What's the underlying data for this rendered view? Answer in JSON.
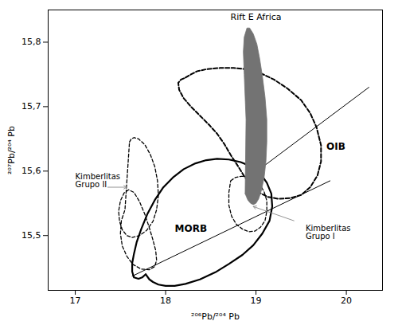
{
  "chart_data": {
    "type": "line",
    "xlabel": "²⁰⁶Pb/²⁰⁴ Pb",
    "ylabel": "²⁰⁷Pb/²⁰⁴ Pb",
    "xlim": [
      16.7,
      20.4
    ],
    "ylim": [
      15.415,
      15.85
    ],
    "xticks": [
      17,
      18,
      19,
      20
    ],
    "yticks": [
      {
        "value": 15.5,
        "label": "15,5"
      },
      {
        "value": 15.6,
        "label": "15,6"
      },
      {
        "value": 15.7,
        "label": "15,7"
      },
      {
        "value": 15.8,
        "label": "15,8"
      }
    ],
    "series": [
      {
        "type": "line",
        "line_style": "solid",
        "x": [
          17.63,
          19.82
        ],
        "values": [
          15.437,
          15.585
        ]
      },
      {
        "type": "line",
        "line_style": "solid",
        "x": [
          19.06,
          20.25
        ],
        "values": [
          15.605,
          15.73
        ]
      },
      {
        "type": "line",
        "line_style": "solid",
        "x": [
          17.78,
          17.82,
          17.86,
          17.92,
          18.0,
          18.1,
          18.22,
          18.38,
          18.55,
          18.7,
          18.85,
          18.97,
          19.07,
          19.15,
          19.18,
          19.17,
          19.12,
          19.05,
          18.95,
          18.83,
          18.7,
          18.57,
          18.45,
          18.33,
          18.2,
          18.08,
          17.97,
          17.88,
          17.8,
          17.73,
          17.68,
          17.65,
          17.63,
          17.63,
          17.65,
          17.7,
          17.74,
          17.78
        ],
        "values": [
          15.44,
          15.432,
          15.428,
          15.424,
          15.422,
          15.422,
          15.425,
          15.432,
          15.443,
          15.456,
          15.47,
          15.485,
          15.503,
          15.523,
          15.545,
          15.565,
          15.582,
          15.596,
          15.607,
          15.614,
          15.618,
          15.619,
          15.617,
          15.612,
          15.603,
          15.59,
          15.574,
          15.555,
          15.534,
          15.51,
          15.49,
          15.472,
          15.457,
          15.444,
          15.435,
          15.433,
          15.435,
          15.44
        ]
      },
      {
        "type": "line",
        "line_style": "dashed",
        "x": [
          18.22,
          18.28,
          18.35,
          18.45,
          18.6,
          18.75,
          18.9,
          19.05,
          19.2,
          19.35,
          19.5,
          19.6,
          19.67,
          19.72,
          19.72,
          19.68,
          19.6,
          19.5,
          19.38,
          19.25,
          19.13,
          19.03,
          18.95,
          18.87,
          18.8,
          18.72,
          18.65,
          18.57,
          18.48,
          18.38,
          18.28,
          18.2,
          18.15,
          18.14,
          18.17,
          18.22
        ],
        "values": [
          15.745,
          15.75,
          15.755,
          15.758,
          15.76,
          15.76,
          15.758,
          15.752,
          15.742,
          15.728,
          15.71,
          15.69,
          15.668,
          15.64,
          15.615,
          15.593,
          15.575,
          15.563,
          15.558,
          15.557,
          15.56,
          15.567,
          15.578,
          15.592,
          15.608,
          15.625,
          15.642,
          15.658,
          15.672,
          15.686,
          15.7,
          15.713,
          15.726,
          15.737,
          15.742,
          15.745
        ]
      },
      {
        "type": "line",
        "line_style": "dashed",
        "x": [
          17.6,
          17.62,
          17.65,
          17.7,
          17.77,
          17.83,
          17.88,
          17.91,
          17.92,
          17.9,
          17.86,
          17.79,
          17.71,
          17.63,
          17.57,
          17.52,
          17.49,
          17.48,
          17.5,
          17.54,
          17.59,
          17.65,
          17.71,
          17.77,
          17.82,
          17.86,
          17.89,
          17.9,
          17.88,
          17.82,
          17.73,
          17.64,
          17.57,
          17.52,
          17.5,
          17.51,
          17.55,
          17.6
        ],
        "values": [
          15.645,
          15.65,
          15.652,
          15.65,
          15.641,
          15.626,
          15.607,
          15.585,
          15.562,
          15.54,
          15.522,
          15.508,
          15.5,
          15.497,
          15.5,
          15.509,
          15.522,
          15.538,
          15.554,
          15.566,
          15.571,
          15.567,
          15.553,
          15.533,
          15.512,
          15.493,
          15.477,
          15.462,
          15.452,
          15.447,
          15.448,
          15.455,
          15.468,
          15.484,
          15.503,
          15.523,
          15.54,
          15.645
        ]
      },
      {
        "type": "line",
        "line_style": "dashed",
        "x": [
          18.72,
          18.77,
          18.84,
          18.91,
          18.98,
          19.04,
          19.09,
          19.12,
          19.12,
          19.1,
          19.05,
          18.99,
          18.92,
          18.85,
          18.78,
          18.73,
          18.7,
          18.7,
          18.72
        ],
        "values": [
          15.585,
          15.59,
          15.592,
          15.591,
          15.587,
          15.58,
          15.568,
          15.554,
          15.538,
          15.523,
          15.513,
          15.507,
          15.506,
          15.51,
          15.518,
          15.53,
          15.547,
          15.567,
          15.585
        ]
      },
      {
        "type": "area",
        "line_style": "solid",
        "color": "#737373",
        "x": [
          18.88,
          18.91,
          18.94,
          18.97,
          19.0,
          19.03,
          19.06,
          19.09,
          19.11,
          19.12,
          19.12,
          19.1,
          19.07,
          19.04,
          19.01,
          18.97,
          18.93,
          18.9,
          18.87,
          18.86,
          18.87,
          18.89,
          18.88
        ],
        "values": [
          15.565,
          15.555,
          15.55,
          15.548,
          15.55,
          15.557,
          15.57,
          15.59,
          15.615,
          15.645,
          15.68,
          15.715,
          15.748,
          15.775,
          15.797,
          15.813,
          15.822,
          15.822,
          15.808,
          15.785,
          15.75,
          15.68,
          15.565
        ]
      }
    ],
    "annotations": [
      {
        "text": "Rift E Africa",
        "x": 19.0,
        "y": 15.835
      },
      {
        "text": "OIB",
        "x": 19.78,
        "y": 15.638
      },
      {
        "text": "MORB",
        "x": 18.28,
        "y": 15.51
      },
      {
        "text": "Kimberlitas\nGrupo I",
        "x": 19.55,
        "y": 15.505,
        "arrow": {
          "x1": 19.42,
          "y1": 15.523,
          "x2": 18.97,
          "y2": 15.545
        }
      },
      {
        "text": "Kimberlitas\nGrupo II",
        "x": 17.0,
        "y": 15.585,
        "arrow": {
          "x1": 17.36,
          "y1": 15.575,
          "x2": 17.57,
          "y2": 15.575
        }
      }
    ]
  }
}
